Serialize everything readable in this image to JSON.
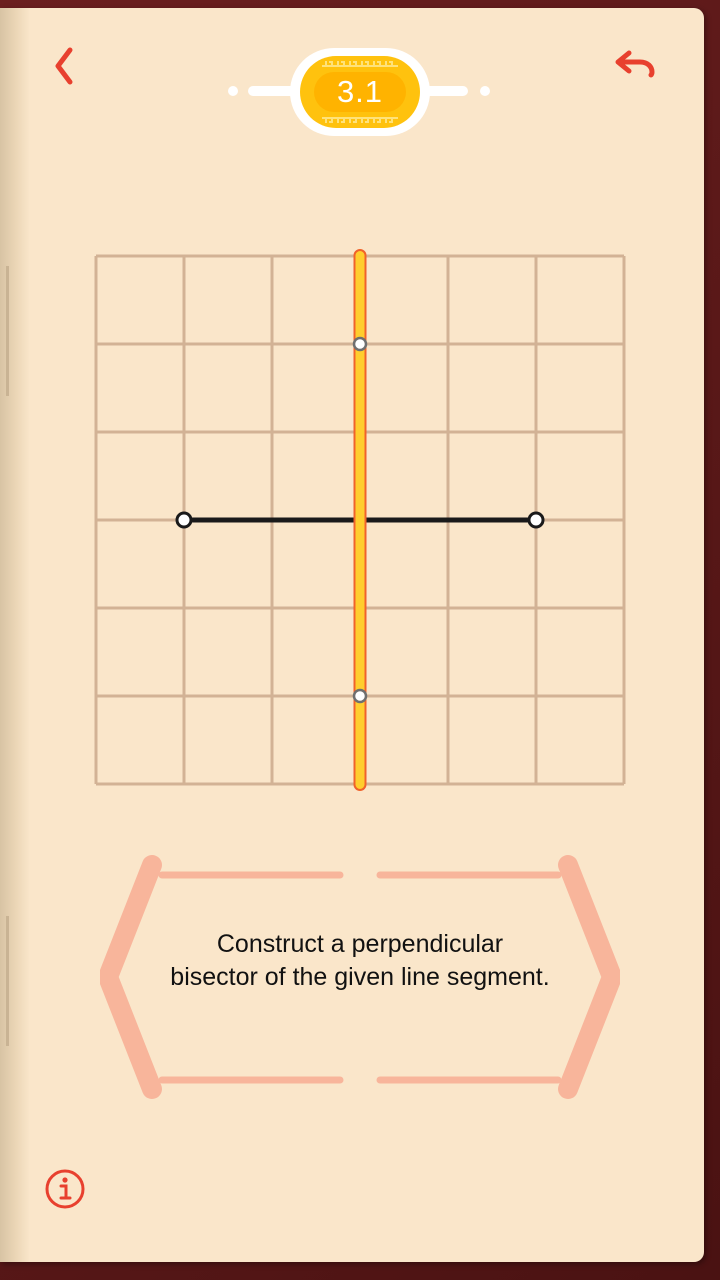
{
  "header": {
    "back_icon": "chevron-left-icon",
    "undo_icon": "undo-arrow-icon",
    "level": "3.1"
  },
  "puzzle": {
    "grid": {
      "columns": 6,
      "rows": 6
    },
    "segment": {
      "from": [
        1,
        3
      ],
      "to": [
        5,
        3
      ]
    },
    "constructed_line": {
      "x": 3,
      "from_y": 0,
      "to_y": 6,
      "points": [
        [
          3,
          1
        ],
        [
          3,
          5
        ]
      ]
    }
  },
  "hint": {
    "text": "Construct a perpendicular bisector of the given line segment."
  },
  "footer": {
    "info_icon": "info-circle-icon"
  },
  "colors": {
    "accent_red": "#e8402e",
    "grid_line": "#d2b295",
    "construction_fill": "#ffcd2e",
    "construction_stroke": "#f0622b",
    "hint_frame": "#f8b59b",
    "level_gold": "#ffc20e"
  }
}
